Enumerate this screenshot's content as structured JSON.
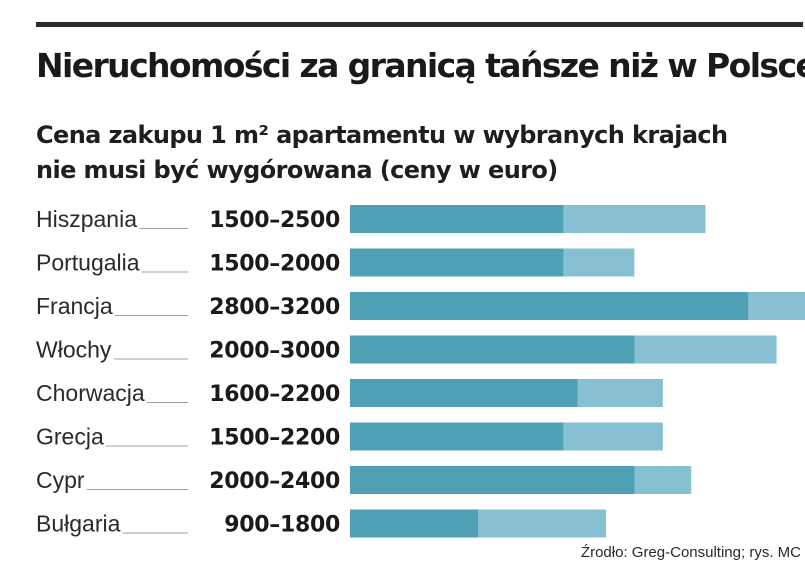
{
  "header": {
    "title": "Nieruchomości za granicą tańsze niż w Polsce",
    "subtitle_line1": "Cena zakupu 1 m² apartamentu w wybranych krajach",
    "subtitle_line2": "nie musi być wygórowana (ceny w euro)"
  },
  "footer": {
    "source": "Źrodło: Greg-Consulting;  rys. MC"
  },
  "colors": {
    "bar_min": "#4f9fb5",
    "bar_range": "#86c0d2",
    "leader": "#a0a0a0",
    "text": "#1e1e1e"
  },
  "chart_data": {
    "type": "bar",
    "orientation": "horizontal",
    "stacked_range": true,
    "title": "Nieruchomości za granicą tańsze niż w Polsce",
    "subtitle": "Cena zakupu 1 m² apartamentu w wybranych krajach nie musi być wygórowana (ceny w euro)",
    "xlim": [
      0,
      3200
    ],
    "grid": false,
    "categories": [
      "Hiszpania",
      "Portugalia",
      "Francja",
      "Włochy",
      "Chorwacja",
      "Grecja",
      "Cypr",
      "Bułgaria"
    ],
    "labels": [
      "1500–2500",
      "1500–2000",
      "2800–3200",
      "2000–3000",
      "1600–2200",
      "1500–2200",
      "2000–2400",
      "900–1800"
    ],
    "min": [
      1500,
      1500,
      2800,
      2000,
      1600,
      1500,
      2000,
      900
    ],
    "max": [
      2500,
      2000,
      3200,
      3000,
      2200,
      2200,
      2400,
      1800
    ]
  }
}
